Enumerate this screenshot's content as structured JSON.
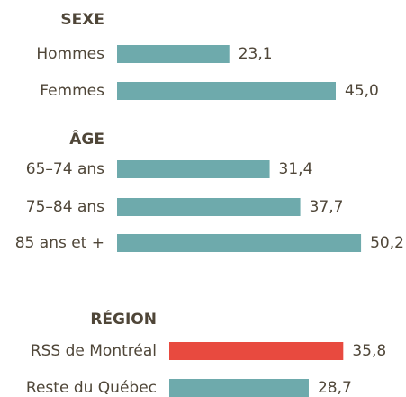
{
  "chart_data": {
    "type": "bar",
    "groups": [
      {
        "title": "SEXE",
        "categories": [
          "Hommes",
          "Femmes"
        ],
        "values": [
          23.1,
          45.0
        ],
        "value_labels": [
          "23,1",
          "45,0"
        ],
        "colors": [
          "#6eaaac",
          "#6eaaac"
        ]
      },
      {
        "title": "ÂGE",
        "categories": [
          "65–74 ans",
          "75–84 ans",
          "85 ans et +"
        ],
        "values": [
          31.4,
          37.7,
          50.2
        ],
        "value_labels": [
          "31,4",
          "37,7",
          "50,2"
        ],
        "colors": [
          "#6eaaac",
          "#6eaaac",
          "#6eaaac"
        ]
      },
      {
        "title": "RÉGION",
        "categories": [
          "RSS de Montréal",
          "Reste du Québec"
        ],
        "values": [
          35.8,
          28.7
        ],
        "value_labels": [
          "35,8",
          "28,7"
        ],
        "colors": [
          "#e84a3f",
          "#6eaaac"
        ]
      }
    ]
  }
}
